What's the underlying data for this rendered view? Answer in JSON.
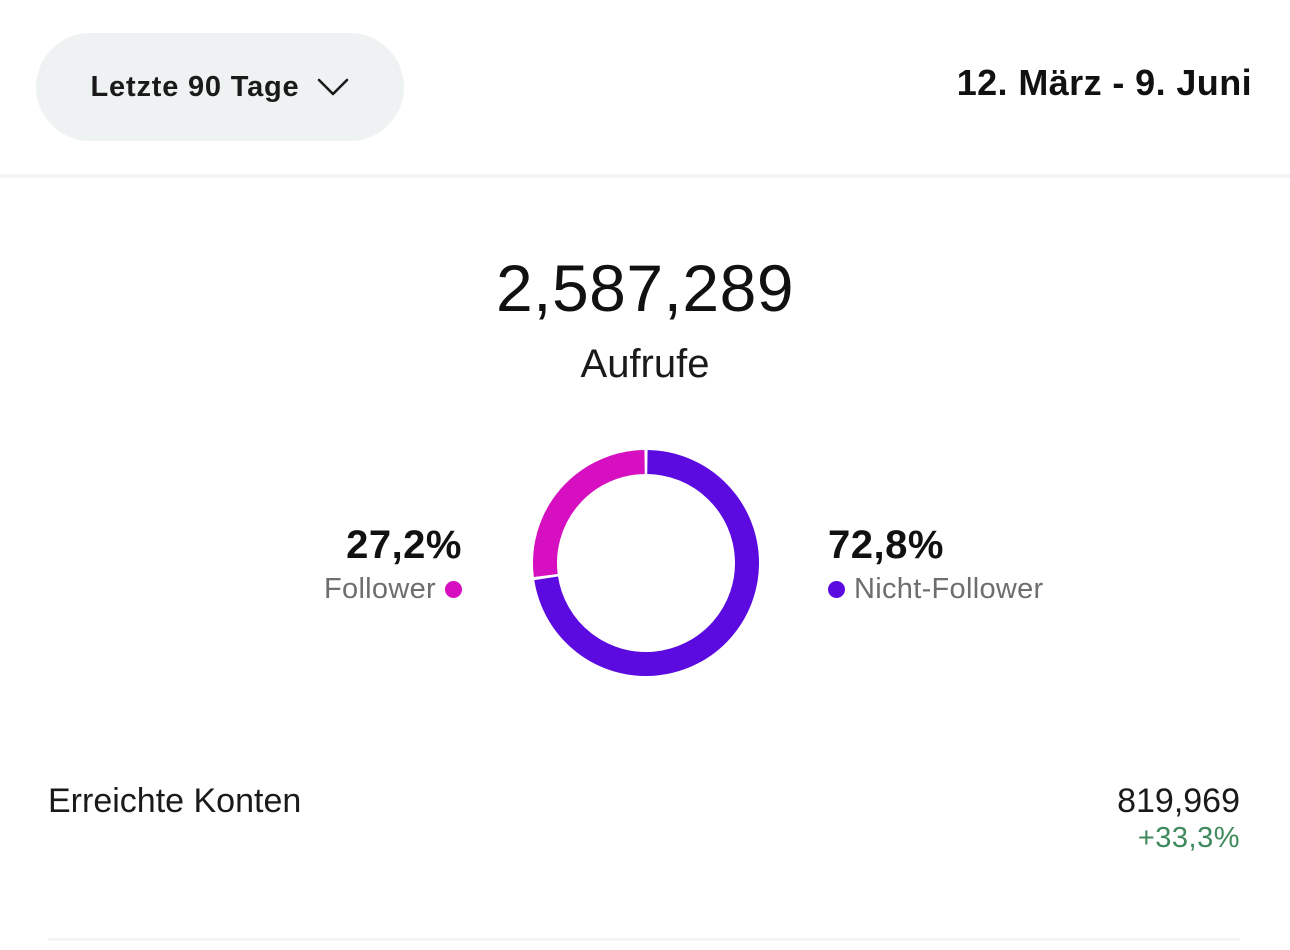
{
  "header": {
    "period_label": "Letzte 90 Tage",
    "date_range": "12. März - 9. Juni"
  },
  "summary": {
    "total_value": "2,587,289",
    "total_label": "Aufrufe"
  },
  "breakdown": {
    "followers": {
      "percent": "27,2%",
      "label": "Follower",
      "fraction": 0.272,
      "color": "#d60fc0"
    },
    "non_followers": {
      "percent": "72,8%",
      "label": "Nicht-Follower",
      "fraction": 0.728,
      "color": "#5b0bdf"
    }
  },
  "metric": {
    "label": "Erreichte Konten",
    "value": "819,969",
    "change": "+33,3%",
    "change_color": "#3e8a5c"
  },
  "icons": {
    "period_chevron": "chevron-down-icon"
  }
}
